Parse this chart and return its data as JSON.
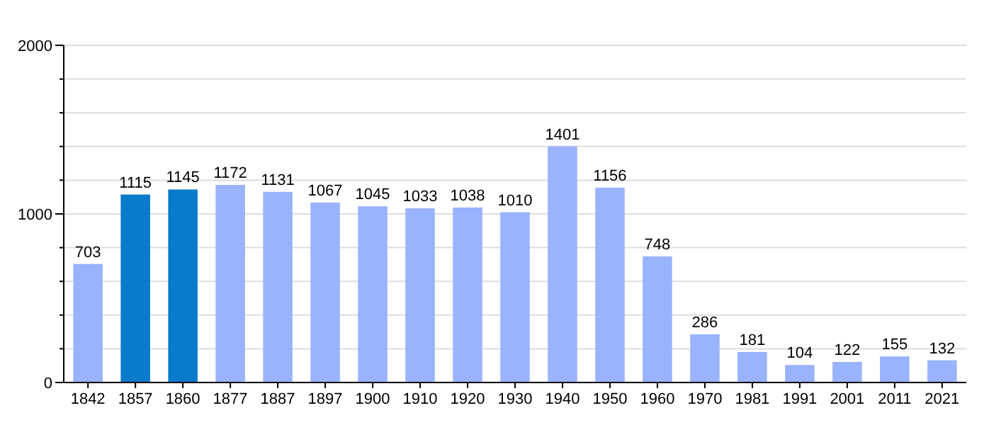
{
  "chart_data": {
    "type": "bar",
    "categories": [
      "1842",
      "1857",
      "1860",
      "1877",
      "1887",
      "1897",
      "1900",
      "1910",
      "1920",
      "1930",
      "1940",
      "1950",
      "1960",
      "1970",
      "1981",
      "1991",
      "2001",
      "2011",
      "2021"
    ],
    "values": [
      703,
      1115,
      1145,
      1172,
      1131,
      1067,
      1045,
      1033,
      1038,
      1010,
      1401,
      1156,
      748,
      286,
      181,
      104,
      122,
      155,
      132
    ],
    "colors": [
      "#99b3ff",
      "#0a7acc",
      "#0a7acc",
      "#99b3ff",
      "#99b3ff",
      "#99b3ff",
      "#99b3ff",
      "#99b3ff",
      "#99b3ff",
      "#99b3ff",
      "#99b3ff",
      "#99b3ff",
      "#99b3ff",
      "#99b3ff",
      "#99b3ff",
      "#99b3ff",
      "#99b3ff",
      "#99b3ff",
      "#99b3ff"
    ],
    "ylim": [
      0,
      2000
    ],
    "yticks": [
      0,
      {
        "value": 200,
        "label": null
      },
      {
        "value": 400,
        "label": null
      },
      {
        "value": 600,
        "label": null
      },
      {
        "value": 800,
        "label": null
      },
      1000,
      {
        "value": 1200,
        "label": null
      },
      {
        "value": 1400,
        "label": null
      },
      {
        "value": 1600,
        "label": null
      },
      {
        "value": 1800,
        "label": null
      },
      2000
    ],
    "grid": true,
    "data_labels": true
  }
}
